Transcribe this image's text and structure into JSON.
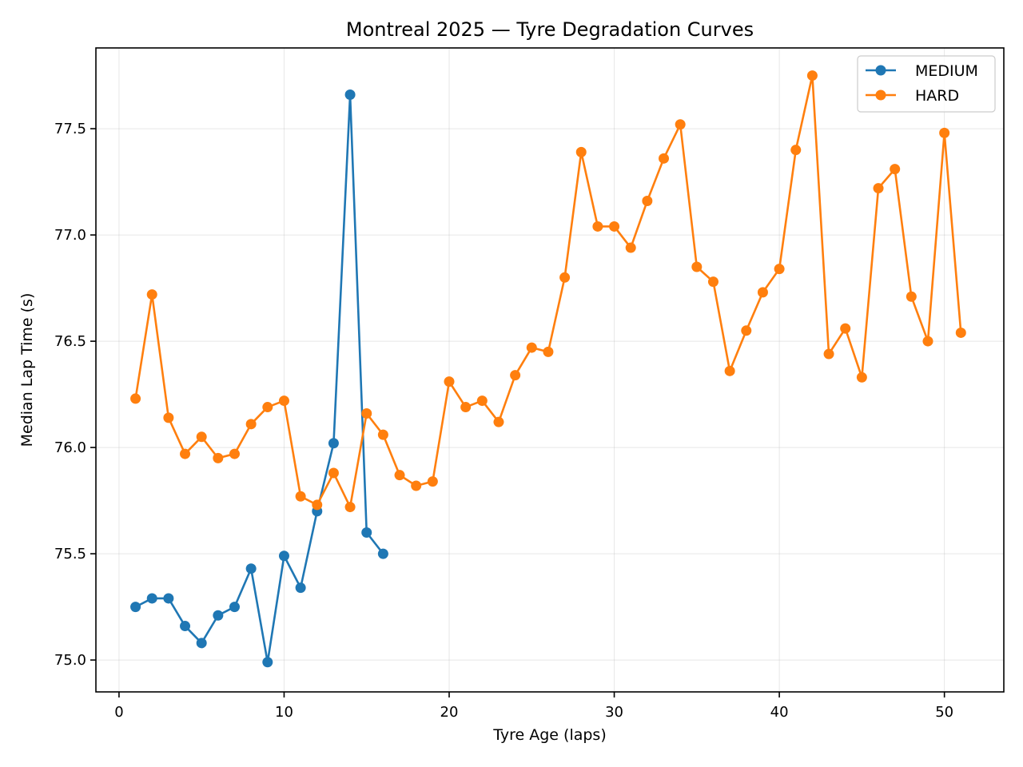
{
  "chart_data": {
    "type": "line",
    "title": "Montreal 2025 — Tyre Degradation Curves",
    "xlabel": "Tyre Age (laps)",
    "ylabel": "Median Lap Time (s)",
    "xlim": [
      -1.4,
      53.6
    ],
    "ylim": [
      74.85,
      77.88
    ],
    "xticks": [
      0,
      10,
      20,
      30,
      40,
      50
    ],
    "xtick_labels": [
      "0",
      "10",
      "20",
      "30",
      "40",
      "50"
    ],
    "yticks": [
      75.0,
      75.5,
      76.0,
      76.5,
      77.0,
      77.5
    ],
    "ytick_labels": [
      "75.0",
      "75.5",
      "76.0",
      "76.5",
      "77.0",
      "77.5"
    ],
    "grid": true,
    "legend_position": "top-right",
    "series": [
      {
        "name": "MEDIUM",
        "color": "#1f77b4",
        "marker": "circle",
        "x": [
          1,
          2,
          3,
          4,
          5,
          6,
          7,
          8,
          9,
          10,
          11,
          12,
          13,
          14,
          15,
          16
        ],
        "y": [
          75.25,
          75.29,
          75.29,
          75.16,
          75.08,
          75.21,
          75.25,
          75.43,
          74.99,
          75.49,
          75.34,
          75.7,
          76.02,
          77.66,
          75.6,
          75.5
        ]
      },
      {
        "name": "HARD",
        "color": "#ff7f0e",
        "marker": "circle",
        "x": [
          1,
          2,
          3,
          4,
          5,
          6,
          7,
          8,
          9,
          10,
          11,
          12,
          13,
          14,
          15,
          16,
          17,
          18,
          19,
          20,
          21,
          22,
          23,
          24,
          25,
          26,
          27,
          28,
          29,
          30,
          31,
          32,
          33,
          34,
          35,
          36,
          37,
          38,
          39,
          40,
          41,
          42,
          43,
          44,
          45,
          46,
          47,
          48,
          49,
          50,
          51
        ],
        "y": [
          76.23,
          76.72,
          76.14,
          75.97,
          76.05,
          75.95,
          75.97,
          76.11,
          76.19,
          76.22,
          75.77,
          75.73,
          75.88,
          75.72,
          76.16,
          76.06,
          75.87,
          75.82,
          75.84,
          76.31,
          76.19,
          76.22,
          76.12,
          76.34,
          76.47,
          76.45,
          76.8,
          77.39,
          77.04,
          77.04,
          76.94,
          77.16,
          77.36,
          77.52,
          76.85,
          76.78,
          76.36,
          76.55,
          76.73,
          76.84,
          77.4,
          77.75,
          76.44,
          76.56,
          76.33,
          77.22,
          77.31,
          76.71,
          76.5,
          77.48,
          76.54
        ]
      }
    ]
  }
}
